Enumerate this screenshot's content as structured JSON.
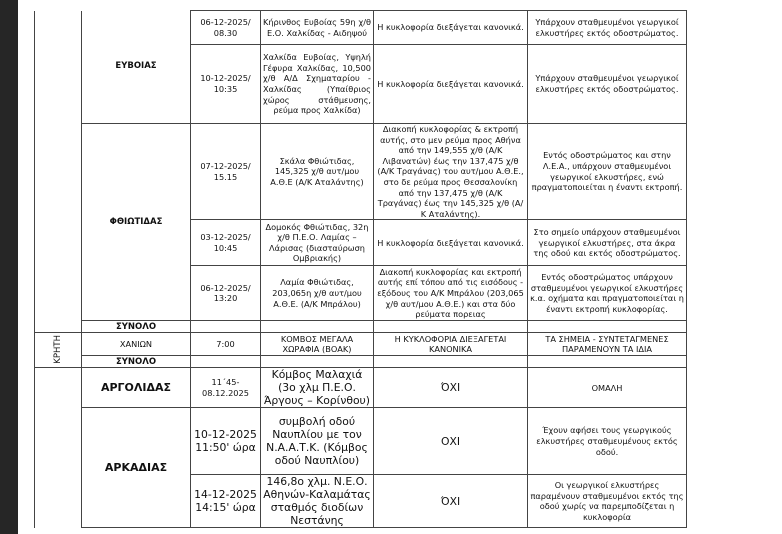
{
  "rows": {
    "evia": {
      "prefecture": "ΕΥΒΟΙΑΣ",
      "r1": {
        "datetime": "06-12-2025/ 08.30",
        "location": "Κήρινθος Ευβοίας 59η χ/θ Ε.Ο. Χαλκίδας - Αιδηψού",
        "traffic": "Η κυκλοφορία διεξάγεται κανονικά.",
        "notes": "Υπάρχουν σταθμευμένοι γεωργικοί ελκυστήρες εκτός οδοστρώματος."
      },
      "r2": {
        "datetime": "10-12-2025/ 10:35",
        "location": "Χαλκίδα Ευβοίας, Υψηλή Γέφυρα Χαλκίδας, 10,500 χ/θ Α/Δ Σχηματαρίου - Χαλκίδας (Υπαίθριος χώρος στάθμευσης, ρεύμα προς Χαλκίδα)",
        "traffic": "Η κυκλοφορία διεξάγεται κανονικά.",
        "notes": "Υπάρχουν σταθμευμένοι γεωργικοί ελκυστήρες εκτός οδοστρώματος."
      }
    },
    "fthiotida": {
      "prefecture": "ΦΘΙΩΤΙΔΑΣ",
      "r1": {
        "datetime": "07-12-2025/ 15.15",
        "location": "Σκάλα Φθιώτιδας, 145,325 χ/θ αυτ/μου Α.Θ.Ε (Α/Κ Αταλάντης)",
        "traffic": "Διακοπή κυκλοφορίας & εκτροπή αυτής, στο μεν ρεύμα προς Αθήνα από την 149,555 χ/θ (Α/Κ Λιβανατών) έως την 137,475 χ/θ (Α/Κ Τραγάνας) του αυτ/μου Α.Θ.Ε., στο δε ρεύμα προς Θεσσαλονίκη από την 137,475 χ/θ (Α/Κ Τραγάνας) έως την 145,325 χ/θ (Α/Κ Αταλάντης).",
        "notes": "Εντός οδοστρώματος και στην Λ.Ε.Α., υπάρχουν σταθμευμένοι γεωργικοί ελκυστήρες, ενώ πραγματοποιείται η έναντι εκτροπή."
      },
      "r2": {
        "datetime": "03-12-2025/ 10:45",
        "location": "Δομοκός Φθιώτιδας, 32η χ/θ Π.Ε.Ο. Λαμίας – Λάρισας (διασταύρωση Ομβριακής)",
        "traffic": "Η κυκλοφορία διεξάγεται κανονικά.",
        "notes": "Στο σημείο υπάρχουν σταθμευμένοι γεωργικοί ελκυστήρες, στα άκρα της οδού και εκτός οδοστρώματος."
      },
      "r3": {
        "datetime": "06-12-2025/ 13:20",
        "location": "Λαμία Φθιώτιδας, 203,065η χ/θ αυτ/μου Α.Θ.Ε. (Α/Κ Μπράλου)",
        "traffic": "Διακοπή κυκλοφορίας και εκτροπή αυτής επί τόπου από τις εισόδους - εξόδους του Α/Κ Μπράλου (203,065 χ/θ αυτ/μου Α.Θ.Ε.) και στα δύο ρεύματα πορειας",
        "notes": "Εντός οδοστρώματος υπάρχουν σταθμευμένοι γεωργικοί ελκυστήρες κ.α. οχήματα και πραγματοποιείται η έναντι εκτροπή κυκλοφορίας."
      }
    },
    "total1": "ΣΥΝΟΛΟ",
    "crete": {
      "region": "ΚΡΗΤΗ",
      "prefecture": "ΧΑΝΙΩΝ",
      "datetime": "7:00",
      "location": "ΚΟΜΒΟΣ ΜΕΓΑΛΑ ΧΩΡΑΦΙΑ (ΒΟΑΚ)",
      "traffic": "Η ΚΥΚΛΟΦΟΡΙΑ ΔΙΕΞΑΓΕΤΑΙ ΚΑΝΟΝΙΚΑ",
      "notes": "ΤΑ ΣΗΜΕΙΑ - ΣΥΝΤΕΤΑΓΜΕΝΕΣ ΠΑΡΑΜΕΝΟΥΝ ΤΑ ΙΔΙΑ",
      "total": "ΣΥΝΟΛΟ"
    },
    "argolida": {
      "prefecture": "ΑΡΓΟΛΙΔΑΣ",
      "datetime": "11΄45- 08.12.2025",
      "location": "Κόμβος Μαλαχιά (3ο χλμ Π.Ε.Ο. Άργους – Κορίνθου)",
      "traffic": "ΌΧΙ",
      "notes": "ΟΜΑΛΗ"
    },
    "arkadia": {
      "prefecture": "ΑΡΚΑΔΙΑΣ",
      "r1": {
        "datetime": "10-12-2025 11:50' ώρα",
        "location": "συμβολή οδού Ναυπλίου με τον Ν.Α.Α.Τ.Κ. (Κόμβος οδού Ναυπλίου)",
        "traffic": "ΟΧΙ",
        "notes": "Έχουν αφήσει τους γεωργικούς ελκυστήρες σταθμευμένους εκτός οδού."
      },
      "r2": {
        "datetime": "14-12-2025 14:15' ώρα",
        "location": "146,8ο χλμ. Ν.Ε.Ο. Αθηνών-Καλαμάτας σταθμός διοδίων Νεστάνης",
        "traffic": "ΌΧΙ",
        "notes": "Οι γεωργικοί ελκυστήρες παραμένουν σταθμευμένοι εκτός της οδού χωρίς να παρεμποδίζεται η κυκλοφορία"
      }
    }
  }
}
